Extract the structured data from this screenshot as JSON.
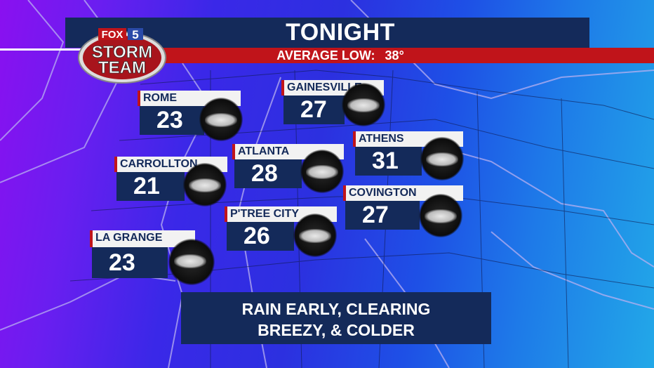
{
  "header": {
    "title": "TONIGHT",
    "subtitle_label": "AVERAGE LOW:",
    "subtitle_value": "38°"
  },
  "logo": {
    "text": [
      "FOX",
      "5",
      "STORM",
      "TEAM"
    ]
  },
  "cities": [
    {
      "name": "ROME",
      "temp": "23",
      "icon": "night-cloudy-icon"
    },
    {
      "name": "GAINESVILLE",
      "temp": "27",
      "icon": "night-cloudy-icon"
    },
    {
      "name": "ATHENS",
      "temp": "31",
      "icon": "night-cloudy-icon"
    },
    {
      "name": "ATLANTA",
      "temp": "28",
      "icon": "night-cloudy-icon"
    },
    {
      "name": "CARROLLTON",
      "temp": "21",
      "icon": "night-cloudy-icon"
    },
    {
      "name": "COVINGTON",
      "temp": "27",
      "icon": "night-cloudy-icon"
    },
    {
      "name": "P'TREE CITY",
      "temp": "26",
      "icon": "night-cloudy-icon"
    },
    {
      "name": "LA GRANGE",
      "temp": "23",
      "icon": "night-cloudy-icon"
    }
  ],
  "forecast": {
    "line1": "RAIN EARLY, CLEARING",
    "line2": "BREEZY, & COLDER"
  },
  "colors": {
    "navy": "#142a5a",
    "red": "#c0141a"
  }
}
